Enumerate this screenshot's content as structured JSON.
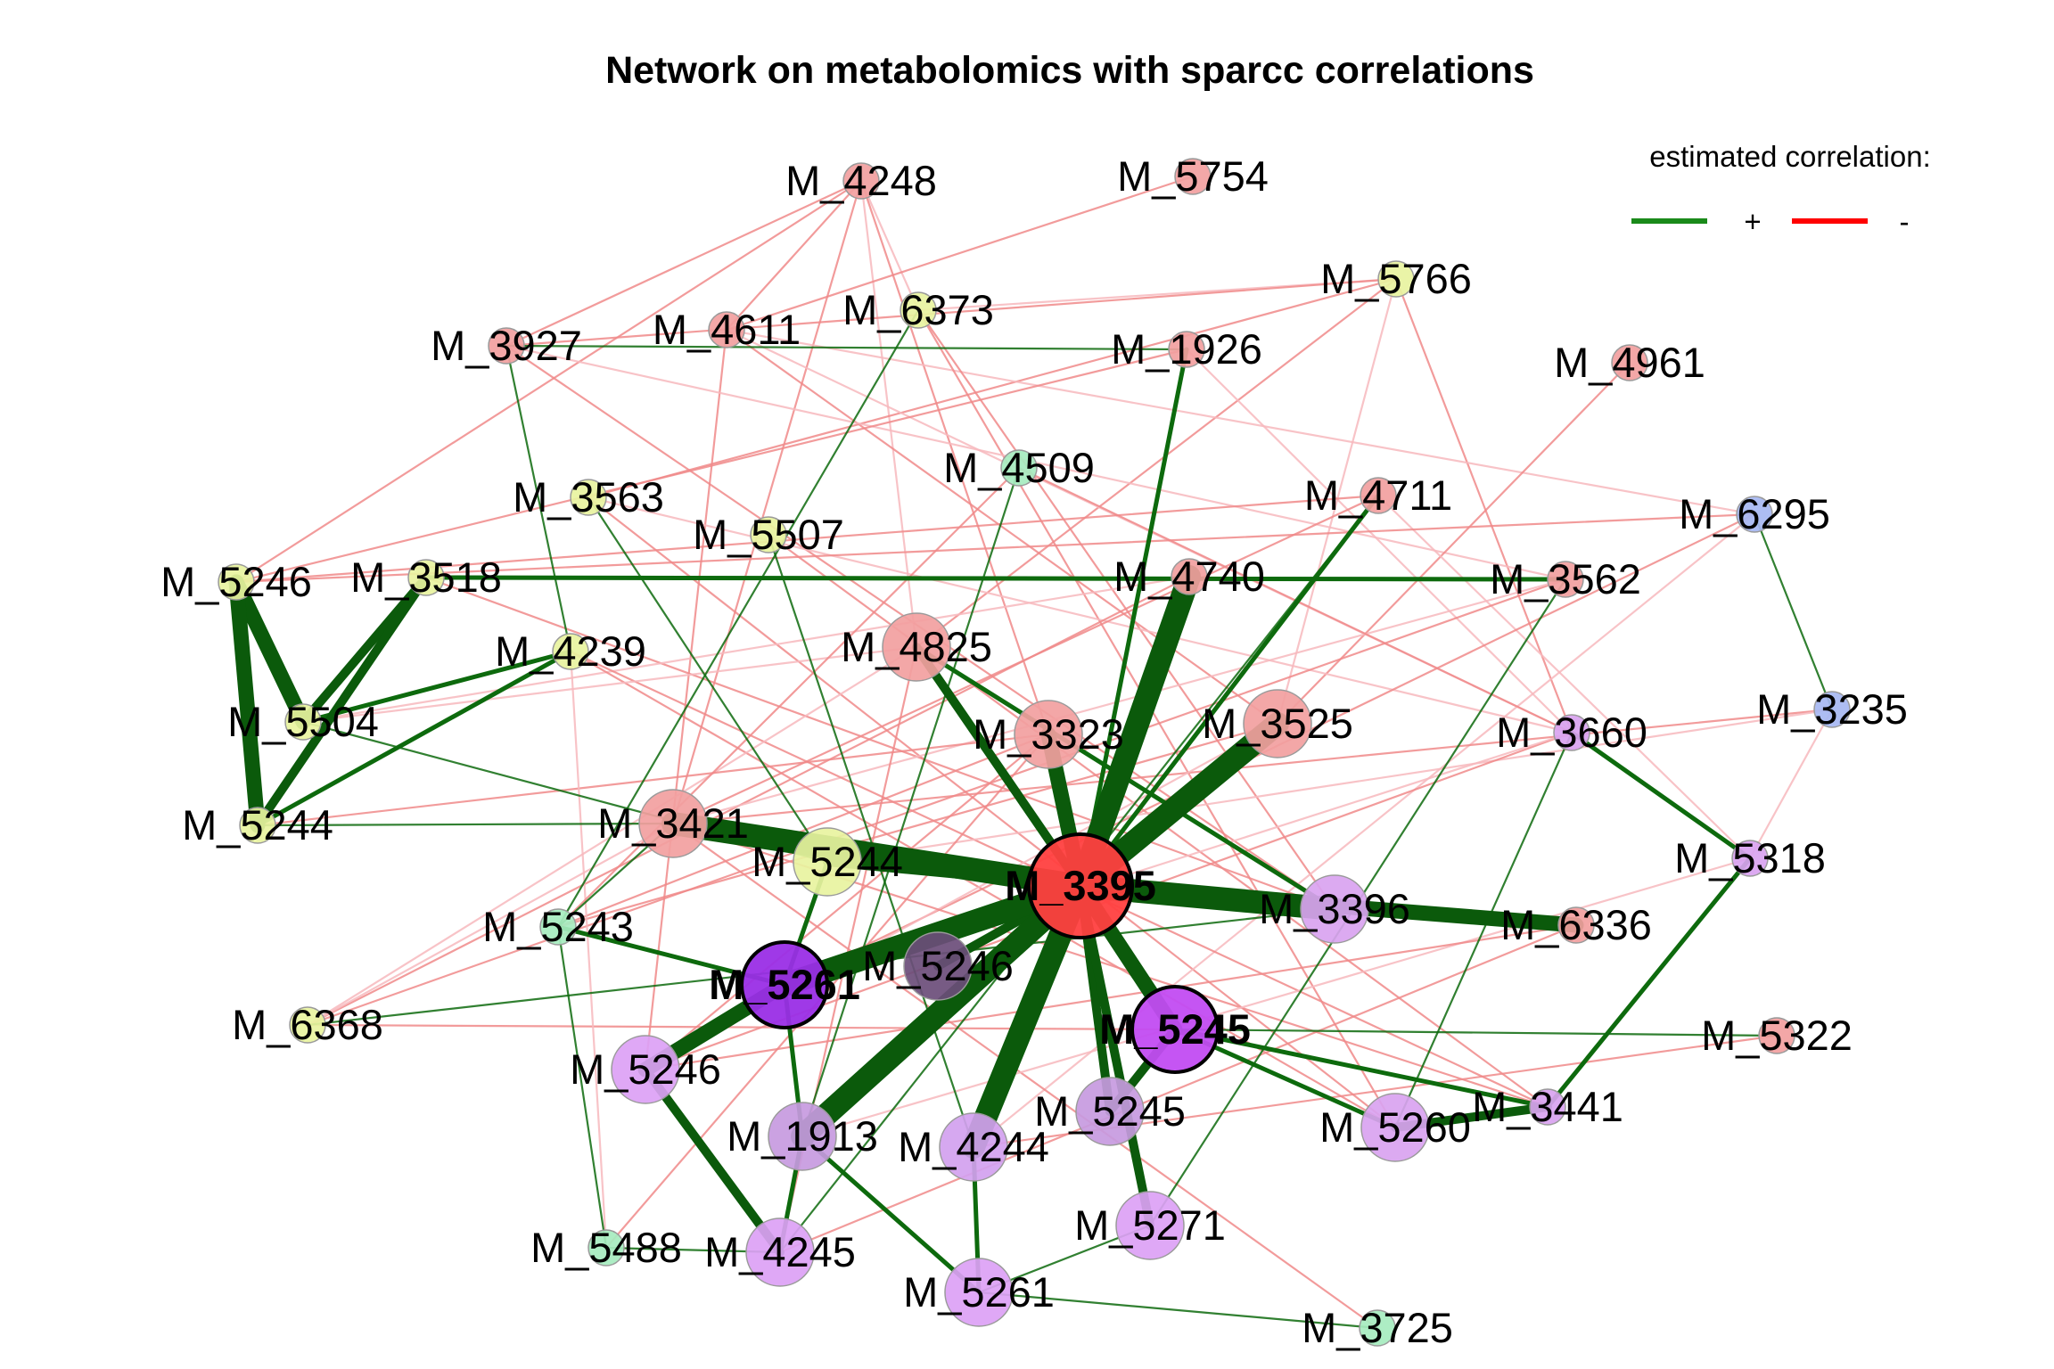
{
  "title": "Network on metabolomics with sparcc correlations",
  "legend": {
    "title": "estimated correlation:",
    "positive": {
      "symbol": "+",
      "color": "#1a8a1a"
    },
    "negative": {
      "symbol": "-",
      "color": "#ff0000"
    }
  },
  "colors": {
    "positive_edge": "#0d6a0d",
    "positive_edge_strong": "#0b5a0b",
    "negative_edge": "#f08a8a",
    "negative_edge_light": "#f7b8bd"
  },
  "nodes": [
    {
      "id": "n01",
      "label": "M_4248",
      "color": "#f2a0a0",
      "size": 1
    },
    {
      "id": "n02",
      "label": "M_5754",
      "color": "#f2a0a0",
      "size": 1
    },
    {
      "id": "n03",
      "label": "M_5766",
      "color": "#e8f3a0",
      "size": 1
    },
    {
      "id": "n04",
      "label": "M_3927",
      "color": "#f2a0a0",
      "size": 1
    },
    {
      "id": "n05",
      "label": "M_4611",
      "color": "#f2a0a0",
      "size": 1
    },
    {
      "id": "n06",
      "label": "M_6373",
      "color": "#e8f3a0",
      "size": 1
    },
    {
      "id": "n07",
      "label": "M_1926",
      "color": "#f2a0a0",
      "size": 1
    },
    {
      "id": "n08",
      "label": "M_4961",
      "color": "#f2a0a0",
      "size": 1
    },
    {
      "id": "n09",
      "label": "M_4509",
      "color": "#a6ecbf",
      "size": 1
    },
    {
      "id": "n10",
      "label": "M_3563",
      "color": "#e8f3a0",
      "size": 1
    },
    {
      "id": "n11",
      "label": "M_4711",
      "color": "#f2a0a0",
      "size": 1
    },
    {
      "id": "n12",
      "label": "M_6295",
      "color": "#a6b7f2",
      "size": 1
    },
    {
      "id": "n13",
      "label": "M_5507",
      "color": "#e8f3a0",
      "size": 1
    },
    {
      "id": "n14",
      "label": "M_5246",
      "color": "#e8f3a0",
      "size": 1
    },
    {
      "id": "n15",
      "label": "M_3518",
      "color": "#e8f3a0",
      "size": 1
    },
    {
      "id": "n16",
      "label": "M_4740",
      "color": "#f2a0a0",
      "size": 1
    },
    {
      "id": "n17",
      "label": "M_3562",
      "color": "#f2a0a0",
      "size": 1
    },
    {
      "id": "n18",
      "label": "M_4239",
      "color": "#e8f3a0",
      "size": 1
    },
    {
      "id": "n19",
      "label": "M_4825",
      "color": "#f2a0a0",
      "size": 2
    },
    {
      "id": "n20",
      "label": "M_3235",
      "color": "#a6b7f2",
      "size": 1
    },
    {
      "id": "n21",
      "label": "M_5504",
      "color": "#e8f3a0",
      "size": 1
    },
    {
      "id": "n22",
      "label": "M_3323",
      "color": "#f2a0a0",
      "size": 2
    },
    {
      "id": "n23",
      "label": "M_3525",
      "color": "#f2a0a0",
      "size": 2
    },
    {
      "id": "n24",
      "label": "M_3660",
      "color": "#d9a3f0",
      "size": 1
    },
    {
      "id": "n25",
      "label": "M_5244",
      "color": "#e8f3a0",
      "size": 1
    },
    {
      "id": "n26",
      "label": "M_3421",
      "color": "#f2a0a0",
      "size": 2
    },
    {
      "id": "n27",
      "label": "M_5244",
      "color": "#e8f3a0",
      "size": 2
    },
    {
      "id": "n28",
      "label": "M_3395",
      "color": "#ff4040",
      "size": 4,
      "hub": true
    },
    {
      "id": "n29",
      "label": "M_5318",
      "color": "#d9a3f0",
      "size": 1
    },
    {
      "id": "n30",
      "label": "M_3396",
      "color": "#d9a3f0",
      "size": 2
    },
    {
      "id": "n31",
      "label": "M_6336",
      "color": "#f2a0a0",
      "size": 1
    },
    {
      "id": "n32",
      "label": "M_5243",
      "color": "#a6ecbf",
      "size": 1
    },
    {
      "id": "n33",
      "label": "M_5246",
      "color": "#6b4d7a",
      "size": 2
    },
    {
      "id": "n34",
      "label": "M_5261",
      "color": "#9a2ee6",
      "size": 3,
      "hub": true
    },
    {
      "id": "n35",
      "label": "M_6368",
      "color": "#e8f3a0",
      "size": 1
    },
    {
      "id": "n36",
      "label": "M_5245",
      "color": "#c24cf2",
      "size": 3,
      "hub": true
    },
    {
      "id": "n37",
      "label": "M_5322",
      "color": "#f2a0a0",
      "size": 1
    },
    {
      "id": "n38",
      "label": "M_5246",
      "color": "#dca1f5",
      "size": 2
    },
    {
      "id": "n39",
      "label": "M_5245",
      "color": "#c79ae0",
      "size": 2
    },
    {
      "id": "n40",
      "label": "M_3441",
      "color": "#d9a3f0",
      "size": 1
    },
    {
      "id": "n41",
      "label": "M_1913",
      "color": "#c79ae0",
      "size": 2
    },
    {
      "id": "n42",
      "label": "M_4244",
      "color": "#d3a1ef",
      "size": 2
    },
    {
      "id": "n43",
      "label": "M_5260",
      "color": "#d9a3f0",
      "size": 2
    },
    {
      "id": "n44",
      "label": "M_5271",
      "color": "#dca1f5",
      "size": 2
    },
    {
      "id": "n45",
      "label": "M_5488",
      "color": "#a6ecbf",
      "size": 1
    },
    {
      "id": "n46",
      "label": "M_4245",
      "color": "#dca1f5",
      "size": 2
    },
    {
      "id": "n47",
      "label": "M_5261",
      "color": "#dca1f5",
      "size": 2
    },
    {
      "id": "n48",
      "label": "M_3725",
      "color": "#a6ecbf",
      "size": 1
    }
  ],
  "edges": [
    {
      "a": "n28",
      "b": "n16",
      "sign": "+",
      "w": 5
    },
    {
      "a": "n28",
      "b": "n23",
      "sign": "+",
      "w": 5
    },
    {
      "a": "n28",
      "b": "n22",
      "sign": "+",
      "w": 4
    },
    {
      "a": "n28",
      "b": "n19",
      "sign": "+",
      "w": 3
    },
    {
      "a": "n28",
      "b": "n26",
      "sign": "+",
      "w": 5
    },
    {
      "a": "n28",
      "b": "n30",
      "sign": "+",
      "w": 5
    },
    {
      "a": "n28",
      "b": "n31",
      "sign": "+",
      "w": 4
    },
    {
      "a": "n28",
      "b": "n34",
      "sign": "+",
      "w": 5
    },
    {
      "a": "n28",
      "b": "n36",
      "sign": "+",
      "w": 4
    },
    {
      "a": "n28",
      "b": "n41",
      "sign": "+",
      "w": 5
    },
    {
      "a": "n28",
      "b": "n42",
      "sign": "+",
      "w": 5
    },
    {
      "a": "n28",
      "b": "n39",
      "sign": "+",
      "w": 3
    },
    {
      "a": "n28",
      "b": "n44",
      "sign": "+",
      "w": 3
    },
    {
      "a": "n28",
      "b": "n33",
      "sign": "+",
      "w": 3
    },
    {
      "a": "n28",
      "b": "n27",
      "sign": "+",
      "w": 3
    },
    {
      "a": "n28",
      "b": "n11",
      "sign": "+",
      "w": 2
    },
    {
      "a": "n28",
      "b": "n7",
      "sign": "+",
      "w": 2
    },
    {
      "a": "n14",
      "b": "n21",
      "sign": "+",
      "w": 4
    },
    {
      "a": "n14",
      "b": "n25",
      "sign": "+",
      "w": 4
    },
    {
      "a": "n15",
      "b": "n21",
      "sign": "+",
      "w": 3
    },
    {
      "a": "n15",
      "b": "n25",
      "sign": "+",
      "w": 3
    },
    {
      "a": "n18",
      "b": "n25",
      "sign": "+",
      "w": 2
    },
    {
      "a": "n18",
      "b": "n21",
      "sign": "+",
      "w": 2
    },
    {
      "a": "n15",
      "b": "n17",
      "sign": "+",
      "w": 2
    },
    {
      "a": "n34",
      "b": "n38",
      "sign": "+",
      "w": 4
    },
    {
      "a": "n34",
      "b": "n32",
      "sign": "+",
      "w": 2
    },
    {
      "a": "n34",
      "b": "n27",
      "sign": "+",
      "w": 2
    },
    {
      "a": "n34",
      "b": "n41",
      "sign": "+",
      "w": 2
    },
    {
      "a": "n38",
      "b": "n46",
      "sign": "+",
      "w": 3
    },
    {
      "a": "n36",
      "b": "n39",
      "sign": "+",
      "w": 3
    },
    {
      "a": "n36",
      "b": "n43",
      "sign": "+",
      "w": 2
    },
    {
      "a": "n36",
      "b": "n40",
      "sign": "+",
      "w": 2
    },
    {
      "a": "n43",
      "b": "n40",
      "sign": "+",
      "w": 3
    },
    {
      "a": "n29",
      "b": "n40",
      "sign": "+",
      "w": 2
    },
    {
      "a": "n29",
      "b": "n24",
      "sign": "+",
      "w": 2
    },
    {
      "a": "n42",
      "b": "n47",
      "sign": "+",
      "w": 2
    },
    {
      "a": "n41",
      "b": "n47",
      "sign": "+",
      "w": 2
    },
    {
      "a": "n41",
      "b": "n46",
      "sign": "+",
      "w": 2
    },
    {
      "a": "n19",
      "b": "n30",
      "sign": "+",
      "w": 2
    },
    {
      "a": "n26",
      "b": "n32",
      "sign": "+",
      "w": 1
    },
    {
      "a": "n10",
      "b": "n27",
      "sign": "+",
      "w": 1
    },
    {
      "a": "n6",
      "b": "n32",
      "sign": "+",
      "w": 1
    },
    {
      "a": "n4",
      "b": "n18",
      "sign": "+",
      "w": 1
    },
    {
      "a": "n4",
      "b": "n7",
      "sign": "+",
      "w": 1
    },
    {
      "a": "n12",
      "b": "n20",
      "sign": "+",
      "w": 1
    },
    {
      "a": "n20",
      "b": "n29",
      "sign": "-",
      "w": 1
    },
    {
      "a": "n24",
      "b": "n43",
      "sign": "+",
      "w": 1
    },
    {
      "a": "n11",
      "b": "n46",
      "sign": "+",
      "w": 1
    },
    {
      "a": "n44",
      "b": "n47",
      "sign": "+",
      "w": 1
    },
    {
      "a": "n45",
      "b": "n46",
      "sign": "+",
      "w": 1
    },
    {
      "a": "n47",
      "b": "n48",
      "sign": "+",
      "w": 1
    },
    {
      "a": "n36",
      "b": "n37",
      "sign": "+",
      "w": 1
    },
    {
      "a": "n32",
      "b": "n45",
      "sign": "+",
      "w": 1
    },
    {
      "a": "n21",
      "b": "n27",
      "sign": "+",
      "w": 1
    },
    {
      "a": "n25",
      "b": "n26",
      "sign": "+",
      "w": 1
    },
    {
      "a": "n9",
      "b": "n41",
      "sign": "+",
      "w": 1
    },
    {
      "a": "n13",
      "b": "n42",
      "sign": "+",
      "w": 1
    },
    {
      "a": "n17",
      "b": "n44",
      "sign": "+",
      "w": 1
    },
    {
      "a": "n35",
      "b": "n30",
      "sign": "+",
      "w": 1
    },
    {
      "a": "n1",
      "b": "n4",
      "sign": "-",
      "w": 1
    },
    {
      "a": "n1",
      "b": "n5",
      "sign": "-",
      "w": 1
    },
    {
      "a": "n1",
      "b": "n6",
      "sign": "-",
      "w": 1
    },
    {
      "a": "n1",
      "b": "n14",
      "sign": "-",
      "w": 1
    },
    {
      "a": "n1",
      "b": "n22",
      "sign": "-",
      "w": 1
    },
    {
      "a": "n1",
      "b": "n19",
      "sign": "-",
      "w": 1
    },
    {
      "a": "n1",
      "b": "n26",
      "sign": "-",
      "w": 1
    },
    {
      "a": "n2",
      "b": "n5",
      "sign": "-",
      "w": 1
    },
    {
      "a": "n3",
      "b": "n6",
      "sign": "-",
      "w": 1
    },
    {
      "a": "n3",
      "b": "n4",
      "sign": "-",
      "w": 1
    },
    {
      "a": "n3",
      "b": "n10",
      "sign": "-",
      "w": 1
    },
    {
      "a": "n3",
      "b": "n23",
      "sign": "-",
      "w": 1
    },
    {
      "a": "n3",
      "b": "n19",
      "sign": "-",
      "w": 1
    },
    {
      "a": "n3",
      "b": "n24",
      "sign": "-",
      "w": 1
    },
    {
      "a": "n5",
      "b": "n24",
      "sign": "-",
      "w": 1
    },
    {
      "a": "n5",
      "b": "n23",
      "sign": "-",
      "w": 1
    },
    {
      "a": "n5",
      "b": "n38",
      "sign": "-",
      "w": 1
    },
    {
      "a": "n5",
      "b": "n12",
      "sign": "-",
      "w": 1
    },
    {
      "a": "n6",
      "b": "n30",
      "sign": "-",
      "w": 1
    },
    {
      "a": "n6",
      "b": "n43",
      "sign": "-",
      "w": 1
    },
    {
      "a": "n4",
      "b": "n17",
      "sign": "-",
      "w": 1
    },
    {
      "a": "n4",
      "b": "n30",
      "sign": "-",
      "w": 1
    },
    {
      "a": "n7",
      "b": "n14",
      "sign": "-",
      "w": 1
    },
    {
      "a": "n7",
      "b": "n24",
      "sign": "-",
      "w": 1
    },
    {
      "a": "n8",
      "b": "n23",
      "sign": "-",
      "w": 1
    },
    {
      "a": "n10",
      "b": "n43",
      "sign": "-",
      "w": 1
    },
    {
      "a": "n10",
      "b": "n24",
      "sign": "-",
      "w": 1
    },
    {
      "a": "n11",
      "b": "n14",
      "sign": "-",
      "w": 1
    },
    {
      "a": "n11",
      "b": "n26",
      "sign": "-",
      "w": 1
    },
    {
      "a": "n11",
      "b": "n29",
      "sign": "-",
      "w": 1
    },
    {
      "a": "n12",
      "b": "n14",
      "sign": "-",
      "w": 1
    },
    {
      "a": "n12",
      "b": "n34",
      "sign": "-",
      "w": 1
    },
    {
      "a": "n12",
      "b": "n42",
      "sign": "-",
      "w": 1
    },
    {
      "a": "n13",
      "b": "n40",
      "sign": "-",
      "w": 1
    },
    {
      "a": "n15",
      "b": "n30",
      "sign": "-",
      "w": 1
    },
    {
      "a": "n16",
      "b": "n21",
      "sign": "-",
      "w": 1
    },
    {
      "a": "n16",
      "b": "n35",
      "sign": "-",
      "w": 1
    },
    {
      "a": "n17",
      "b": "n35",
      "sign": "-",
      "w": 1
    },
    {
      "a": "n17",
      "b": "n26",
      "sign": "-",
      "w": 1
    },
    {
      "a": "n18",
      "b": "n40",
      "sign": "-",
      "w": 1
    },
    {
      "a": "n18",
      "b": "n43",
      "sign": "-",
      "w": 1
    },
    {
      "a": "n19",
      "b": "n35",
      "sign": "-",
      "w": 1
    },
    {
      "a": "n19",
      "b": "n46",
      "sign": "-",
      "w": 1
    },
    {
      "a": "n20",
      "b": "n26",
      "sign": "-",
      "w": 1
    },
    {
      "a": "n20",
      "b": "n27",
      "sign": "-",
      "w": 1
    },
    {
      "a": "n22",
      "b": "n38",
      "sign": "-",
      "w": 1
    },
    {
      "a": "n22",
      "b": "n45",
      "sign": "-",
      "w": 1
    },
    {
      "a": "n23",
      "b": "n38",
      "sign": "-",
      "w": 1
    },
    {
      "a": "n23",
      "b": "n32",
      "sign": "-",
      "w": 1
    },
    {
      "a": "n24",
      "b": "n38",
      "sign": "-",
      "w": 1
    },
    {
      "a": "n24",
      "b": "n34",
      "sign": "-",
      "w": 1
    },
    {
      "a": "n26",
      "b": "n40",
      "sign": "-",
      "w": 1
    },
    {
      "a": "n26",
      "b": "n48",
      "sign": "-",
      "w": 1
    },
    {
      "a": "n29",
      "b": "n41",
      "sign": "-",
      "w": 1
    },
    {
      "a": "n31",
      "b": "n38",
      "sign": "-",
      "w": 1
    },
    {
      "a": "n31",
      "b": "n46",
      "sign": "-",
      "w": 1
    },
    {
      "a": "n35",
      "b": "n26",
      "sign": "-",
      "w": 1
    },
    {
      "a": "n35",
      "b": "n36",
      "sign": "-",
      "w": 1
    },
    {
      "a": "n37",
      "b": "n42",
      "sign": "-",
      "w": 1
    },
    {
      "a": "n21",
      "b": "n19",
      "sign": "-",
      "w": 1
    },
    {
      "a": "n25",
      "b": "n22",
      "sign": "-",
      "w": 1
    },
    {
      "a": "n32",
      "b": "n22",
      "sign": "-",
      "w": 1
    },
    {
      "a": "n45",
      "b": "n18",
      "sign": "-",
      "w": 1
    },
    {
      "a": "n9",
      "b": "n24",
      "sign": "-",
      "w": 1
    },
    {
      "a": "n9",
      "b": "n32",
      "sign": "-",
      "w": 1
    }
  ]
}
